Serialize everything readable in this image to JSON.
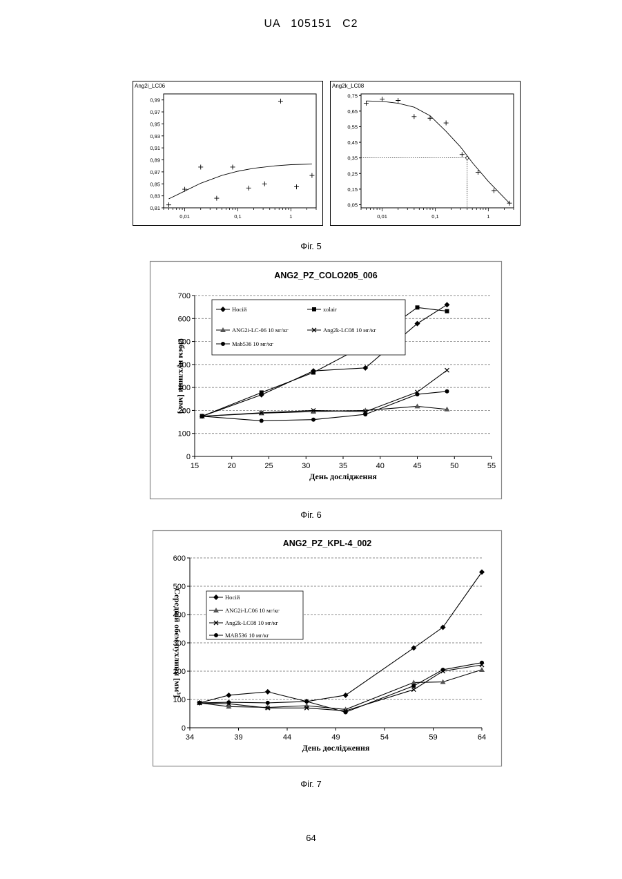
{
  "header": "UA 105151 C2",
  "page_number": "64",
  "captions": [
    "Фіг. 5",
    "Фіг. 6",
    "Фіг. 7"
  ],
  "chart_data": [
    {
      "id": "fig5a",
      "type": "scatter",
      "title": "Ang2i_LC06",
      "xscale": "log",
      "xlim": [
        0.004,
        3
      ],
      "ylim": [
        0.81,
        1.0
      ],
      "xticks": [
        0.01,
        0.1,
        1
      ],
      "xtick_labels": [
        "0,01",
        "0,1",
        "1"
      ],
      "yticks": [
        0.81,
        0.83,
        0.85,
        0.87,
        0.89,
        0.91,
        0.93,
        0.95,
        0.97,
        0.99
      ],
      "ytick_labels": [
        "0,81",
        "0,83",
        "0,85",
        "0,87",
        "0,89",
        "0,91",
        "0,93",
        "0,95",
        "0,97",
        "0,99"
      ],
      "points": {
        "x": [
          0.005,
          0.01,
          0.02,
          0.04,
          0.08,
          0.16,
          0.32,
          0.64,
          1.28,
          2.5
        ],
        "y": [
          0.815,
          0.841,
          0.878,
          0.826,
          0.878,
          0.843,
          0.85,
          0.988,
          0.845,
          0.864
        ]
      },
      "fit": {
        "x": [
          0.005,
          0.01,
          0.02,
          0.05,
          0.1,
          0.2,
          0.5,
          1,
          2.5
        ],
        "y": [
          0.825,
          0.838,
          0.851,
          0.864,
          0.871,
          0.876,
          0.88,
          0.882,
          0.883
        ]
      },
      "grid": false
    },
    {
      "id": "fig5b",
      "type": "scatter",
      "title": "Ang2k_LC08",
      "xscale": "log",
      "xlim": [
        0.004,
        3
      ],
      "ylim": [
        0.03,
        0.76
      ],
      "xticks": [
        0.01,
        0.1,
        1
      ],
      "xtick_labels": [
        "0,01",
        "0,1",
        "1"
      ],
      "yticks": [
        0.05,
        0.15,
        0.25,
        0.35,
        0.45,
        0.55,
        0.65,
        0.75
      ],
      "ytick_labels": [
        "0,05",
        "0,15",
        "0,25",
        "0,35",
        "0,45",
        "0,55",
        "0,65",
        "0,75"
      ],
      "points": {
        "x": [
          0.005,
          0.01,
          0.02,
          0.04,
          0.08,
          0.16,
          0.32,
          0.64,
          1.28,
          2.5
        ],
        "y": [
          0.7,
          0.727,
          0.718,
          0.615,
          0.604,
          0.574,
          0.372,
          0.258,
          0.14,
          0.06
        ]
      },
      "fit": {
        "x": [
          0.005,
          0.01,
          0.02,
          0.04,
          0.08,
          0.16,
          0.3,
          0.5,
          1,
          2.5
        ],
        "y": [
          0.715,
          0.712,
          0.7,
          0.675,
          0.62,
          0.52,
          0.42,
          0.32,
          0.2,
          0.06
        ]
      },
      "marker_point": {
        "x": 0.4,
        "y": 0.35
      },
      "grid": false
    },
    {
      "id": "fig6",
      "type": "line",
      "title": "ANG2_PZ_COLO205_006",
      "xlabel": "День дослідження",
      "ylabel": "Обєм пухлини [мм³]",
      "xlim": [
        15,
        55
      ],
      "ylim": [
        0,
        700
      ],
      "xticks": [
        15,
        20,
        25,
        30,
        35,
        40,
        45,
        50,
        55
      ],
      "yticks": [
        0,
        100,
        200,
        300,
        400,
        500,
        600,
        700
      ],
      "grid": true,
      "legend_position": "top-inside",
      "series": [
        {
          "name": "Носій",
          "marker": "diamond",
          "x": [
            16,
            24,
            31,
            38,
            45,
            49
          ],
          "y": [
            175,
            268,
            372,
            385,
            578,
            660
          ]
        },
        {
          "name": "xolair",
          "marker": "square",
          "x": [
            16,
            24,
            31,
            38,
            45,
            49
          ],
          "y": [
            175,
            278,
            365,
            485,
            648,
            632
          ]
        },
        {
          "name": "ANG2i-LC-06 10 мг/кг",
          "marker": "triangle",
          "x": [
            16,
            24,
            31,
            38,
            45,
            49
          ],
          "y": [
            175,
            188,
            195,
            200,
            218,
            205
          ]
        },
        {
          "name": "Ang2k-LC08 10 мг/кг",
          "marker": "x",
          "x": [
            16,
            24,
            31,
            38,
            45,
            49
          ],
          "y": [
            175,
            190,
            200,
            195,
            280,
            375
          ]
        },
        {
          "name": "Mab536 10 мг/кг",
          "marker": "circle",
          "x": [
            16,
            24,
            31,
            38,
            45,
            49
          ],
          "y": [
            175,
            155,
            160,
            183,
            270,
            283
          ]
        }
      ]
    },
    {
      "id": "fig7",
      "type": "line",
      "title": "ANG2_PZ_KPL-4_002",
      "xlabel": "День дослідження",
      "ylabel": "Середній обєм пухлини [мм³]",
      "xlim": [
        34,
        64
      ],
      "ylim": [
        0,
        600
      ],
      "xticks": [
        34,
        39,
        44,
        49,
        54,
        59,
        64
      ],
      "yticks": [
        0,
        100,
        200,
        300,
        400,
        500,
        600
      ],
      "grid": true,
      "legend_position": "left-inside",
      "series": [
        {
          "name": "Носій",
          "marker": "diamond",
          "x": [
            35,
            38,
            42,
            46,
            50,
            57,
            60,
            64
          ],
          "y": [
            88,
            115,
            127,
            93,
            115,
            282,
            355,
            550
          ]
        },
        {
          "name": "ANG2i-LC06 10 мг/кг",
          "marker": "triangle",
          "x": [
            35,
            38,
            42,
            46,
            50,
            57,
            60,
            64
          ],
          "y": [
            88,
            75,
            72,
            78,
            65,
            160,
            162,
            205
          ]
        },
        {
          "name": "Ang2k-LC08 10 мг/кг",
          "marker": "x",
          "x": [
            35,
            38,
            42,
            46,
            50,
            57,
            60,
            64
          ],
          "y": [
            88,
            85,
            70,
            70,
            60,
            135,
            200,
            222
          ]
        },
        {
          "name": "MAB536 10 мг/кг",
          "marker": "circle",
          "x": [
            35,
            38,
            42,
            46,
            50,
            57,
            60,
            64
          ],
          "y": [
            88,
            90,
            88,
            93,
            55,
            148,
            205,
            230
          ]
        }
      ]
    }
  ]
}
